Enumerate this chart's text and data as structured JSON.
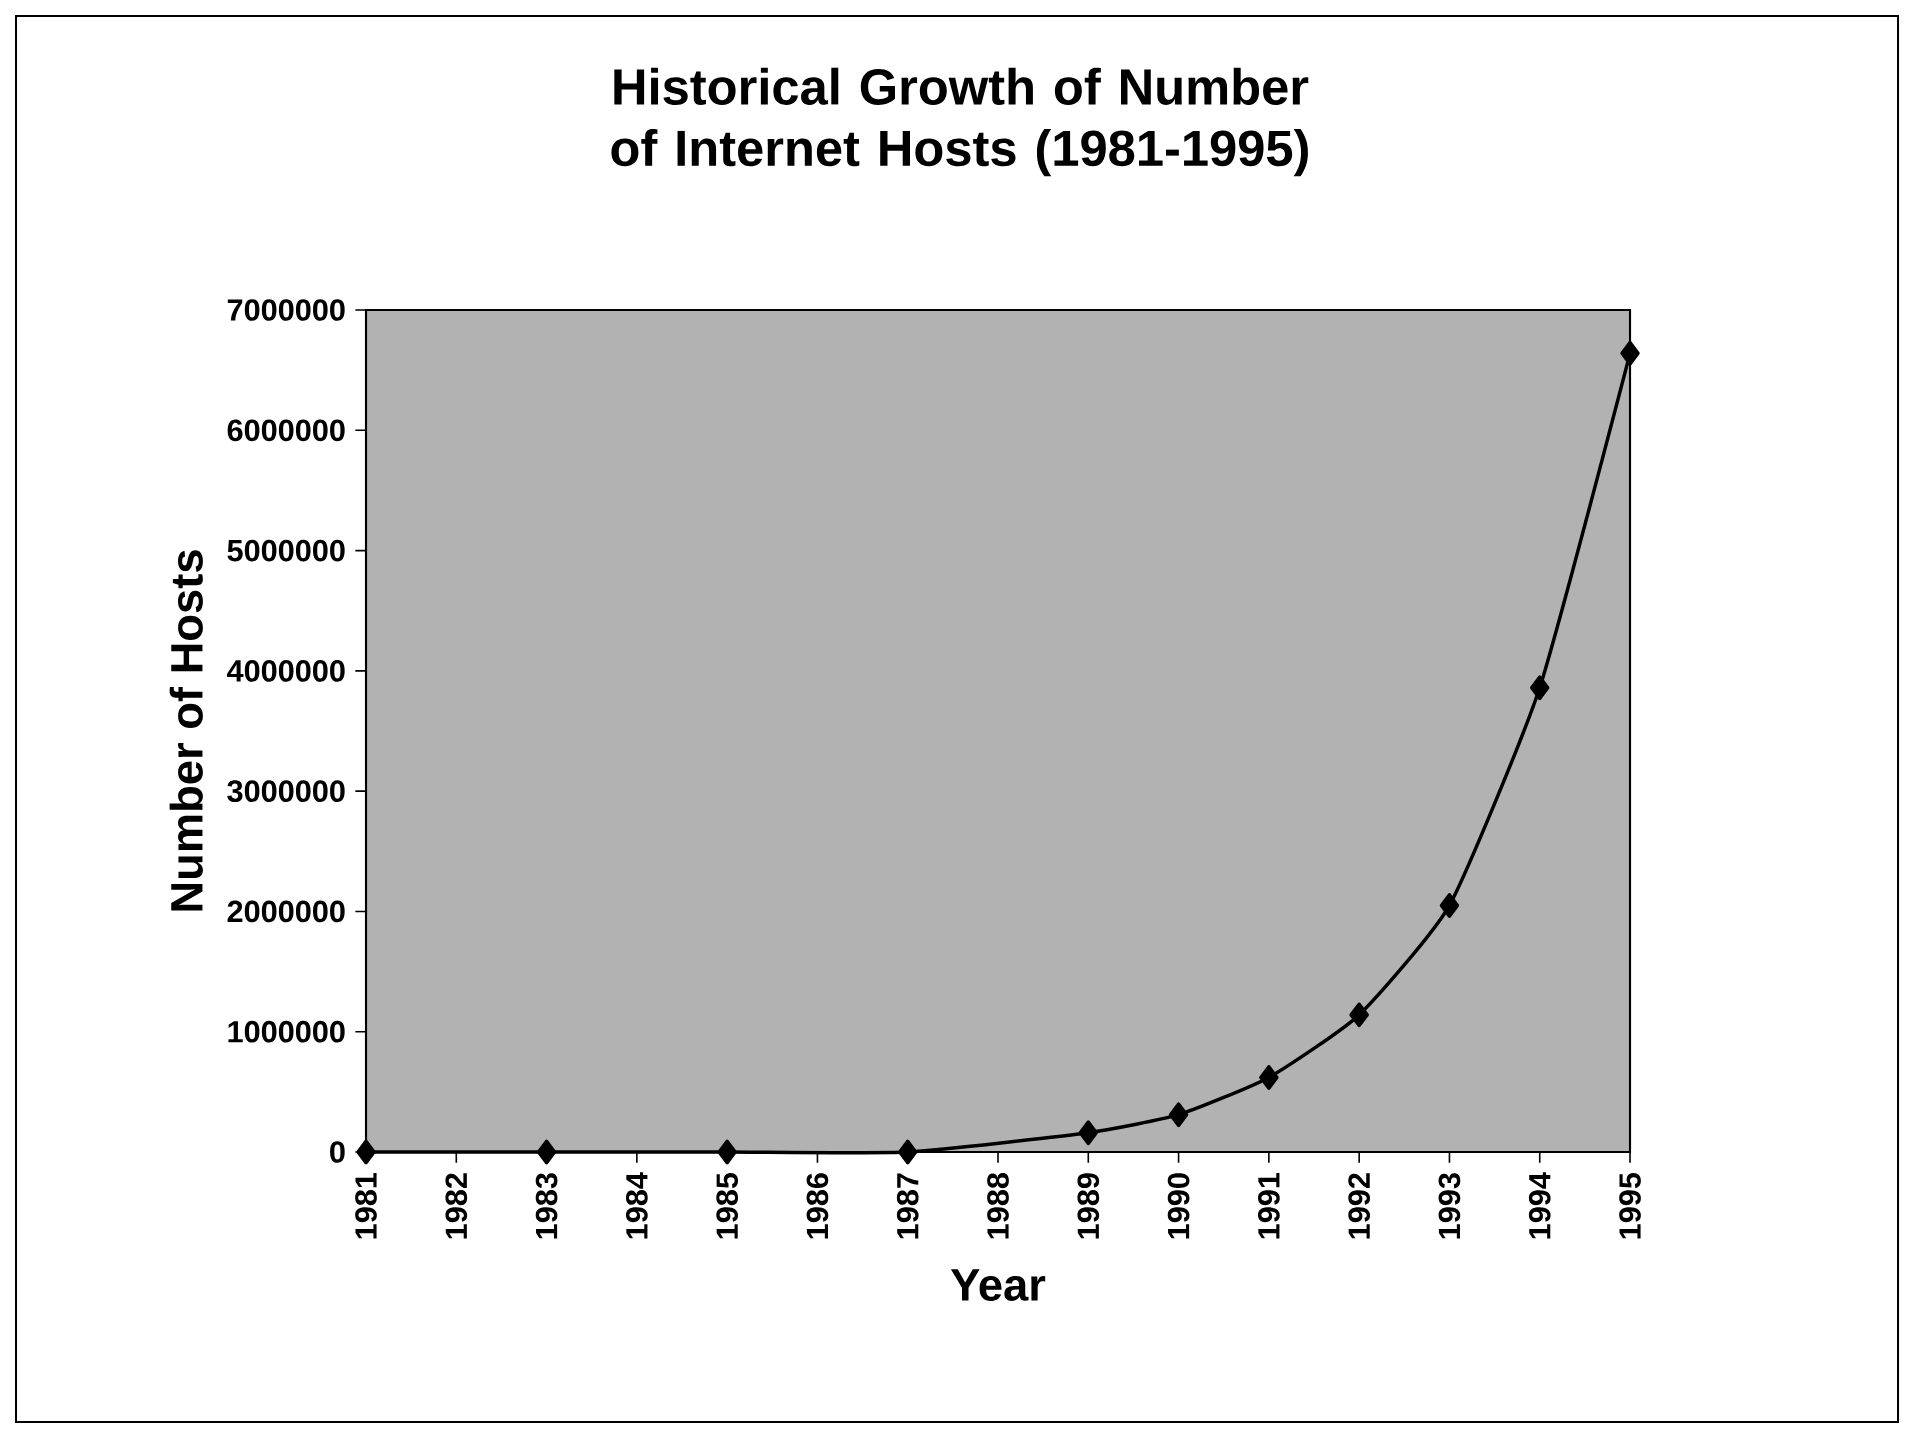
{
  "chart_data": {
    "type": "line",
    "title": "Historical Growth of Number of Internet Hosts (1981-1995)",
    "xlabel": "Year",
    "ylabel": "Number of Hosts",
    "x": [
      1981,
      1983,
      1985,
      1987,
      1989,
      1990,
      1991,
      1992,
      1993,
      1994,
      1995
    ],
    "series": [
      {
        "color": "#000000",
        "values": [
          0,
          0,
          0,
          0,
          160000,
          310000,
          620000,
          1140000,
          2050000,
          3860000,
          6640000
        ]
      }
    ],
    "xlim": [
      1981,
      1995
    ],
    "xticks": [
      1981,
      1982,
      1983,
      1984,
      1985,
      1986,
      1987,
      1988,
      1989,
      1990,
      1991,
      1992,
      1993,
      1994,
      1995
    ],
    "ylim": [
      0,
      7000000
    ],
    "yticks": [
      0,
      1000000,
      2000000,
      3000000,
      4000000,
      5000000,
      6000000,
      7000000
    ],
    "marker": "diamond",
    "line_style": "solid"
  }
}
